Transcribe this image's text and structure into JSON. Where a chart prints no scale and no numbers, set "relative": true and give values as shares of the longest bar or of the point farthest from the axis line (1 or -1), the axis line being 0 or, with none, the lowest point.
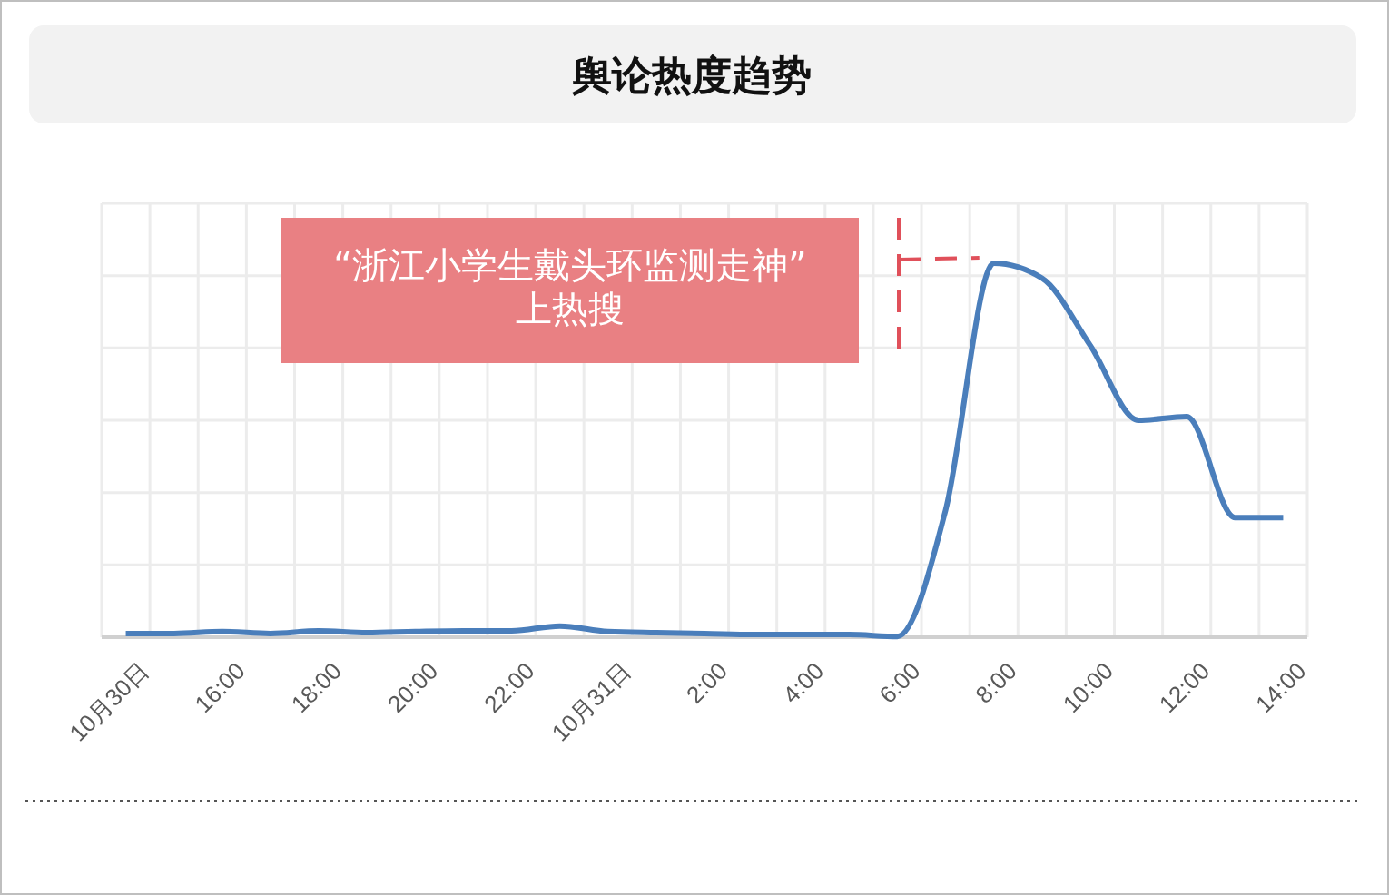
{
  "chart_data": {
    "type": "line",
    "title": "舆论热度趋势",
    "relative": true,
    "grid": true,
    "marker": "none",
    "line_style": "solid",
    "categories": [
      "10月30日",
      null,
      "16:00",
      null,
      "18:00",
      null,
      "20:00",
      null,
      "22:00",
      null,
      "10月31日",
      null,
      "2:00",
      null,
      "4:00",
      null,
      "6:00",
      null,
      "8:00",
      null,
      "10:00",
      null,
      "12:00",
      null,
      "14:00"
    ],
    "series": [
      {
        "color": "#4a7ebb",
        "values": [
          0.01,
          0.01,
          0.015,
          0.01,
          0.017,
          0.012,
          0.015,
          0.017,
          0.017,
          0.03,
          0.015,
          0.012,
          0.01,
          0.007,
          0.007,
          0.007,
          0.002,
          0.34,
          1,
          0.96,
          0.78,
          0.58,
          0.59,
          0.32,
          0.32
        ]
      }
    ],
    "annotations": [
      "“浙江小学生戴头环监测走神”\n上热搜"
    ]
  }
}
